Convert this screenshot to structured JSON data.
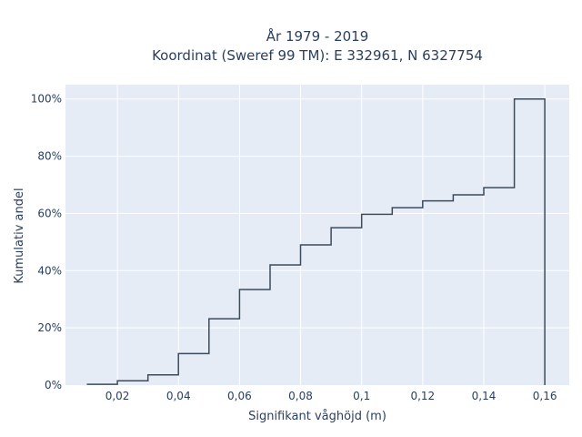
{
  "chart_data": {
    "type": "histogram-step-cumulative",
    "title_line1": "År 1979 - 2019",
    "title_line2": "Koordinat (Sweref 99 TM): E 332961, N 6327754",
    "xlabel": "Signifikant våghöjd (m)",
    "ylabel": "Kumulativ andel",
    "xlim": [
      0.003,
      0.168
    ],
    "ylim": [
      0,
      1.05
    ],
    "x_ticks": [
      0.02,
      0.04,
      0.06,
      0.08,
      0.1,
      0.12,
      0.14,
      0.16
    ],
    "x_tick_labels": [
      "0,02",
      "0,04",
      "0,06",
      "0,08",
      "0,1",
      "0,12",
      "0,14",
      "0,16"
    ],
    "y_ticks": [
      0,
      0.2,
      0.4,
      0.6,
      0.8,
      1.0
    ],
    "y_tick_labels": [
      "0%",
      "20%",
      "40%",
      "60%",
      "80%",
      "100%"
    ],
    "bin_width": 0.01,
    "bin_starts": [
      0.01,
      0.02,
      0.03,
      0.04,
      0.05,
      0.06,
      0.07,
      0.08,
      0.09,
      0.1,
      0.11,
      0.12,
      0.13,
      0.14,
      0.15
    ],
    "cumulative": [
      0.003,
      0.015,
      0.036,
      0.11,
      0.232,
      0.334,
      0.42,
      0.49,
      0.55,
      0.597,
      0.62,
      0.644,
      0.665,
      0.69,
      1.0
    ],
    "grid": true,
    "colors": {
      "plot_bg": "#e5ecf6",
      "grid": "#ffffff",
      "line": "#3d4b5c",
      "text": "#2a3f5f"
    }
  }
}
